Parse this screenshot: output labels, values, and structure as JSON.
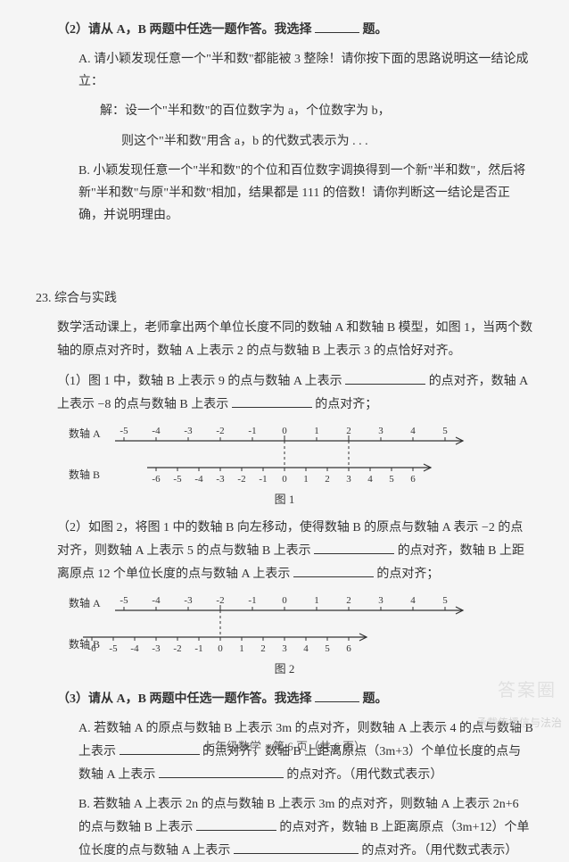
{
  "q2": {
    "prompt_a": "（2）请从 A，B 两题中任选一题作答。我选择",
    "prompt_b": "题。",
    "A": {
      "line1": "A. 请小颖发现任意一个\"半和数\"都能被 3 整除！请你按下面的思路说明这一结论成立：",
      "line2": "解：设一个\"半和数\"的百位数字为 a，个位数字为 b，",
      "line3": "则这个\"半和数\"用含 a，b 的代数式表示为 . . ."
    },
    "B": {
      "line1": "B. 小颖发现任意一个\"半和数\"的个位和百位数字调换得到一个新\"半和数\"，然后将新\"半和数\"与原\"半和数\"相加，结果都是 111 的倍数！请你判断这一结论是否正确，并说明理由。"
    }
  },
  "q23": {
    "num": "23.",
    "title": "综合与实践",
    "intro": "数学活动课上，老师拿出两个单位长度不同的数轴 A 和数轴 B 模型，如图 1，当两个数轴的原点对齐时，数轴 A 上表示 2 的点与数轴 B 上表示 3 的点恰好对齐。",
    "part1_a": "（1）图 1 中，数轴 B 上表示 9 的点与数轴 A 上表示",
    "part1_b": "的点对齐，数轴 A 上表示 −8 的点与数轴 B 上表示",
    "part1_c": "的点对齐；",
    "fig1": {
      "caption": "图 1",
      "labelA": "数轴 A",
      "labelB": "数轴 B",
      "ticksA": [
        -5,
        -4,
        -3,
        -2,
        -1,
        0,
        1,
        2,
        3,
        4,
        5
      ],
      "ticksB": [
        -6,
        -5,
        -4,
        -3,
        -2,
        -1,
        0,
        1,
        2,
        3,
        4,
        5,
        6
      ],
      "topY": 20,
      "botY": 50,
      "leftX": 70,
      "unitA": 36,
      "unitB": 24,
      "dashX_offsetsA": [
        0,
        2
      ],
      "arrow": 8,
      "stroke": "#333"
    },
    "part2_a": "（2）如图 2，将图 1 中的数轴 B 向左移动，使得数轴 B 的原点与数轴 A 表示 −2 的点对齐，则数轴 A 上表示 5 的点与数轴 B 上表示",
    "part2_b": "的点对齐，数轴 B 上距离原点 12 个单位长度的点与数轴 A 上表示",
    "part2_c": "的点对齐；",
    "fig2": {
      "caption": "图 2",
      "labelA": "数轴 A",
      "labelB": "数轴 B",
      "ticksA": [
        -5,
        -4,
        -3,
        -2,
        -1,
        0,
        1,
        2,
        3,
        4,
        5
      ],
      "ticksB": [
        -6,
        -5,
        -4,
        -3,
        -2,
        -1,
        0,
        1,
        2,
        3,
        4,
        5,
        6
      ],
      "topY": 20,
      "botY": 50,
      "leftX": 70,
      "unitA": 36,
      "unitB": 24,
      "B_origin_at_A": -2,
      "dashX_offsetsA": [
        -2
      ],
      "arrow": 8,
      "stroke": "#333"
    },
    "part3_prompt_a": "（3）请从 A，B 两题中任选一题作答。我选择",
    "part3_prompt_b": "题。",
    "part3A_a": "A. 若数轴 A 的原点与数轴 B 上表示 3m 的点对齐，则数轴 A 上表示 4 的点与数轴 B 上表示",
    "part3A_b": "的点对齐，数轴 B 上距离原点（3m+3）个单位长度的点与数轴 A 上表示",
    "part3A_c": "的点对齐。（用代数式表示）",
    "part3B_a": "B. 若数轴 A 上表示 2n 的点与数轴 B 上表示 3m 的点对齐，则数轴 A 上表示 2n+6 的点与数轴 B 上表示",
    "part3B_b": "的点对齐，数轴 B 上距离原点（3m+12）个单位长度的点与数轴 A 上表示",
    "part3B_c": "的点对齐。（用代数式表示）"
  },
  "footer": "七年级数学　第 6 页（共 6 页）",
  "watermark_right": "承载传播信与法治",
  "watermark_stamp": "答案圈"
}
